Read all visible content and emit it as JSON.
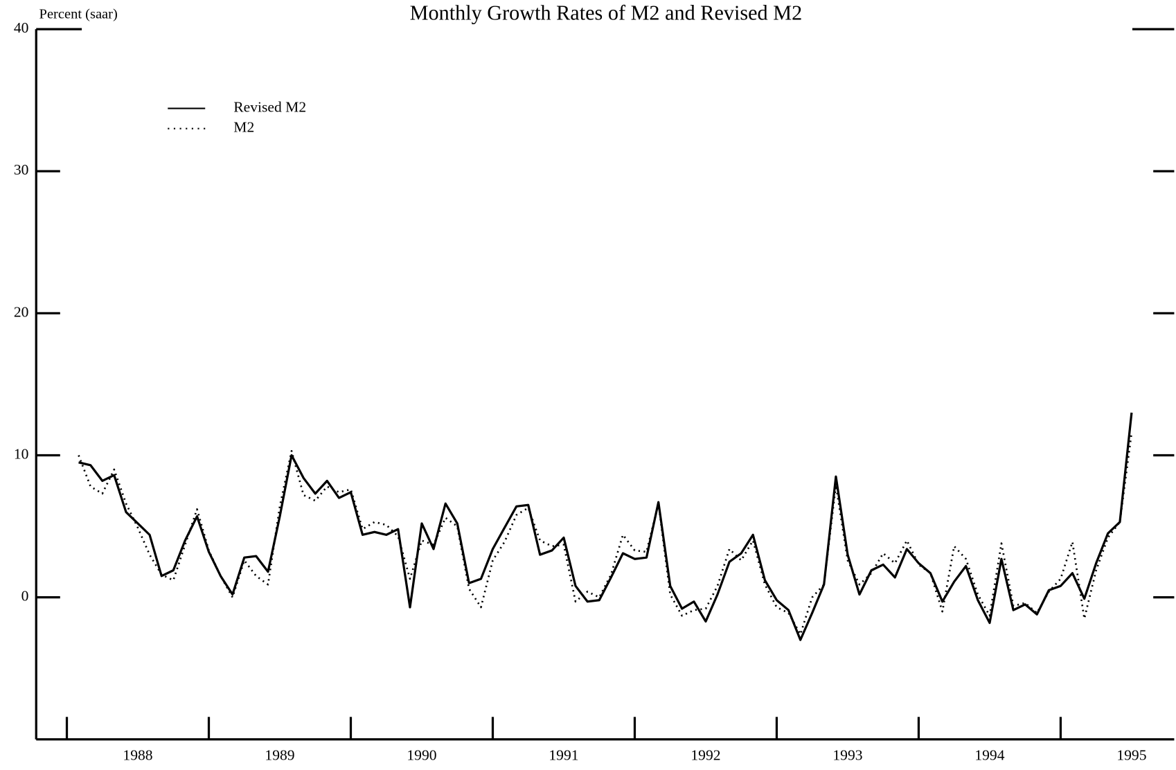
{
  "chart_data": {
    "type": "line",
    "title": "Monthly Growth Rates of M2 and Revised M2",
    "ylabel": "Percent (saar)",
    "x": [
      1988.083,
      1988.167,
      1988.25,
      1988.333,
      1988.417,
      1988.5,
      1988.583,
      1988.667,
      1988.75,
      1988.833,
      1988.917,
      1989,
      1989.083,
      1989.167,
      1989.25,
      1989.333,
      1989.417,
      1989.5,
      1989.583,
      1989.667,
      1989.75,
      1989.833,
      1989.917,
      1990,
      1990.083,
      1990.167,
      1990.25,
      1990.333,
      1990.417,
      1990.5,
      1990.583,
      1990.667,
      1990.75,
      1990.833,
      1990.917,
      1991,
      1991.083,
      1991.167,
      1991.25,
      1991.333,
      1991.417,
      1991.5,
      1991.583,
      1991.667,
      1991.75,
      1991.833,
      1991.917,
      1992,
      1992.083,
      1992.167,
      1992.25,
      1992.333,
      1992.417,
      1992.5,
      1992.583,
      1992.667,
      1992.75,
      1992.833,
      1992.917,
      1993,
      1993.083,
      1993.167,
      1993.25,
      1993.333,
      1993.417,
      1993.5,
      1993.583,
      1993.667,
      1993.75,
      1993.833,
      1993.917,
      1994,
      1994.083,
      1994.167,
      1994.25,
      1994.333,
      1994.417,
      1994.5,
      1994.583,
      1994.667,
      1994.75,
      1994.833,
      1994.917,
      1995,
      1995.083,
      1995.167,
      1995.25,
      1995.333,
      1995.417,
      1995.5
    ],
    "series": [
      {
        "name": "Revised M2",
        "color": "#000000",
        "dash": "solid",
        "values": [
          9.5,
          9.3,
          8.2,
          8.6,
          6.0,
          5.2,
          4.4,
          1.5,
          1.9,
          4.0,
          5.7,
          3.2,
          1.5,
          0.2,
          2.8,
          2.9,
          1.8,
          5.7,
          10.0,
          8.4,
          7.3,
          8.2,
          7.0,
          7.4,
          4.4,
          4.6,
          4.4,
          4.8,
          -0.7,
          5.2,
          3.4,
          6.6,
          5.2,
          1.0,
          1.3,
          3.4,
          4.9,
          6.4,
          6.5,
          3.0,
          3.3,
          4.2,
          0.8,
          -0.3,
          -0.2,
          1.4,
          3.1,
          2.7,
          2.8,
          6.7,
          0.8,
          -0.8,
          -0.3,
          -1.7,
          0.2,
          2.5,
          3.1,
          4.4,
          1.2,
          -0.2,
          -0.9,
          -3.0,
          -1.1,
          0.9,
          8.5,
          3.0,
          0.2,
          1.9,
          2.3,
          1.4,
          3.4,
          2.4,
          1.7,
          -0.3,
          1.1,
          2.2,
          -0.2,
          -1.8,
          2.7,
          -0.9,
          -0.5,
          -1.2,
          0.5,
          0.8,
          1.7,
          -0.1,
          2.4,
          4.5,
          5.3,
          13.0
        ]
      },
      {
        "name": "M2",
        "color": "#000000",
        "dash": "dotted",
        "values": [
          10.0,
          7.8,
          7.3,
          9.0,
          6.6,
          4.9,
          3.0,
          1.6,
          1.2,
          3.7,
          6.2,
          3.3,
          1.5,
          0.0,
          2.6,
          1.5,
          0.9,
          6.4,
          10.3,
          7.2,
          6.8,
          7.8,
          7.4,
          7.6,
          4.8,
          5.3,
          5.1,
          4.3,
          1.3,
          4.0,
          3.7,
          5.6,
          5.0,
          0.6,
          -0.7,
          2.6,
          3.9,
          5.8,
          6.3,
          4.0,
          3.6,
          3.7,
          -0.3,
          0.4,
          0.0,
          1.6,
          4.4,
          3.3,
          3.2,
          6.6,
          0.2,
          -1.3,
          -0.9,
          -0.8,
          0.8,
          3.4,
          2.6,
          4.0,
          0.9,
          -0.7,
          -1.1,
          -2.6,
          0.0,
          0.9,
          7.9,
          2.6,
          0.9,
          1.7,
          3.1,
          2.4,
          4.0,
          2.3,
          1.7,
          -1.0,
          3.6,
          2.7,
          0.2,
          -1.3,
          3.8,
          -0.6,
          -0.4,
          -1.1,
          0.4,
          1.3,
          3.9,
          -1.5,
          1.9,
          4.2,
          5.3,
          11.6
        ]
      }
    ],
    "xlim": [
      1987.784,
      1995.8
    ],
    "ylim": [
      -10,
      40
    ],
    "yticks": [
      0,
      10,
      20,
      30,
      40
    ],
    "xticks": [
      {
        "value": 1988.5,
        "label": "1988"
      },
      {
        "value": 1989.5,
        "label": "1989"
      },
      {
        "value": 1990.5,
        "label": "1990"
      },
      {
        "value": 1991.5,
        "label": "1991"
      },
      {
        "value": 1992.5,
        "label": "1992"
      },
      {
        "value": 1993.5,
        "label": "1993"
      },
      {
        "value": 1994.5,
        "label": "1994"
      },
      {
        "value": 1995.5,
        "label": "1995"
      }
    ],
    "x_boundaries": [
      1988,
      1989,
      1990,
      1991,
      1992,
      1993,
      1994,
      1995
    ],
    "grid": false,
    "legend": "upper left"
  }
}
